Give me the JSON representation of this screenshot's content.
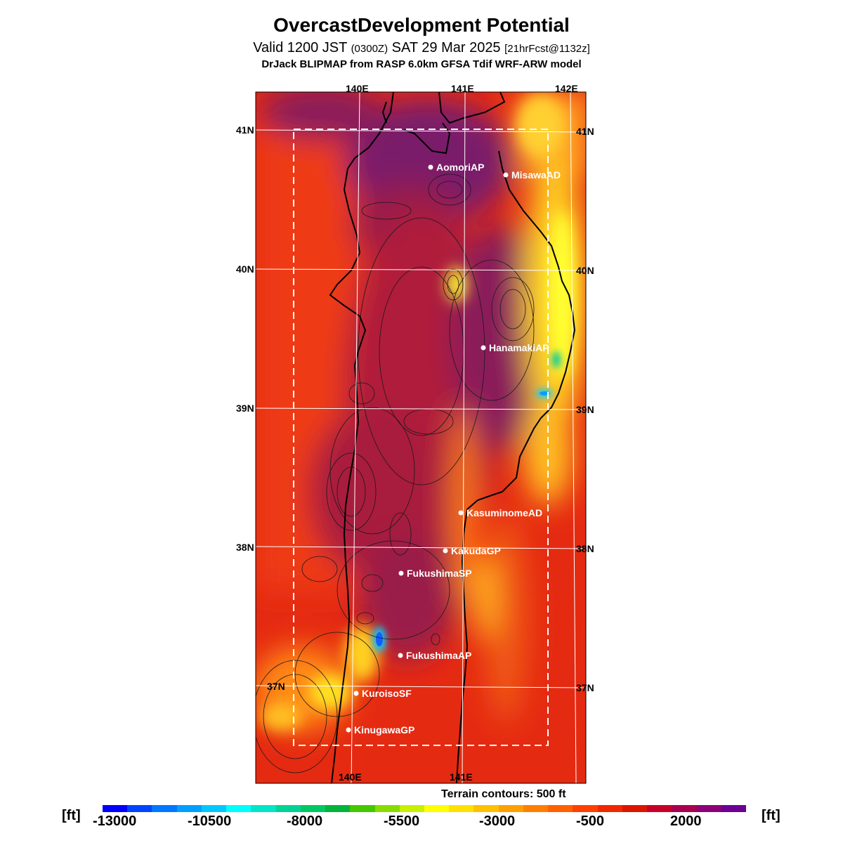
{
  "title": "OvercastDevelopment Potential",
  "subtitle": {
    "valid": "Valid 1200 JST",
    "utc": "(0300Z)",
    "date": "SAT 29 Mar 2025",
    "fcst": "[21hrFcst@1132z]"
  },
  "model_line": "DrJack BLIPMAP from RASP 6.0km GFSA Tdif WRF-ARW model",
  "axes": {
    "lon_top": [
      "140E",
      "141E",
      "142E"
    ],
    "lon_bottom": [
      "140E",
      "141E"
    ],
    "lat_left": [
      "41N",
      "40N",
      "39N",
      "38N",
      "37N"
    ],
    "lat_right": [
      "41N",
      "40N",
      "39N",
      "38N",
      "37N"
    ]
  },
  "stations": [
    {
      "name": "AomoriAP"
    },
    {
      "name": "MisawaAD"
    },
    {
      "name": "HanamakiAP"
    },
    {
      "name": "KasuminomeAD"
    },
    {
      "name": "KakudaGP"
    },
    {
      "name": "FukushimaSP"
    },
    {
      "name": "FukushimaAP"
    },
    {
      "name": "KuroisoSF"
    },
    {
      "name": "KinugawaGP"
    }
  ],
  "terrain_note": "Terrain contours: 500 ft",
  "colorbar": {
    "unit": "[ft]",
    "tick_labels": [
      "-13000",
      "-10500",
      "-8000",
      "-5500",
      "-3000",
      "-500",
      "2000"
    ],
    "colors": [
      "#0000ff",
      "#0044ff",
      "#0077ff",
      "#00a0ff",
      "#00c8ff",
      "#00ffff",
      "#00e6c8",
      "#00d296",
      "#00c864",
      "#00b43c",
      "#44c800",
      "#88dc00",
      "#c8f000",
      "#ffff00",
      "#ffe000",
      "#ffc000",
      "#ffa000",
      "#ff8000",
      "#ff6000",
      "#ff4000",
      "#f02800",
      "#dc1400",
      "#c80028",
      "#aa0050",
      "#8c0078",
      "#6e0096"
    ]
  }
}
